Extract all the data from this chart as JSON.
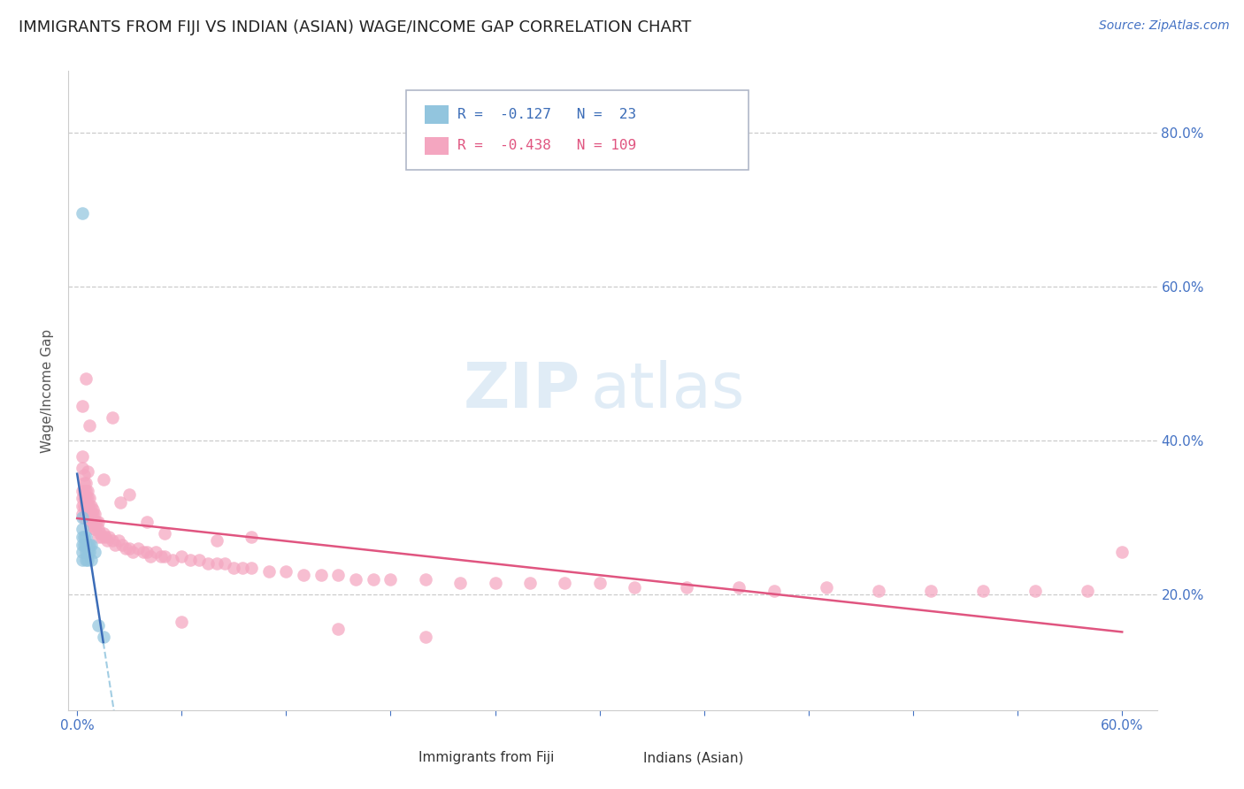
{
  "title": "IMMIGRANTS FROM FIJI VS INDIAN (ASIAN) WAGE/INCOME GAP CORRELATION CHART",
  "source": "Source: ZipAtlas.com",
  "xlabel_fiji": "Immigrants from Fiji",
  "xlabel_indian": "Indians (Asian)",
  "ylabel_label": "Wage/Income Gap",
  "x_ticks": [
    0.0,
    0.06,
    0.12,
    0.18,
    0.24,
    0.3,
    0.36,
    0.42,
    0.48,
    0.54,
    0.6
  ],
  "x_tick_labels_show": [
    "0.0%",
    "",
    "",
    "",
    "",
    "",
    "",
    "",
    "",
    "",
    "60.0%"
  ],
  "y_ticks_right": [
    0.2,
    0.4,
    0.6,
    0.8
  ],
  "y_tick_labels_right": [
    "20.0%",
    "40.0%",
    "60.0%",
    "80.0%"
  ],
  "xlim": [
    -0.005,
    0.62
  ],
  "ylim": [
    0.05,
    0.88
  ],
  "legend_r1_val": "-0.127",
  "legend_r1_n": "23",
  "legend_r2_val": "-0.438",
  "legend_r2_n": "109",
  "fiji_color": "#92c5de",
  "indian_color": "#f4a6c0",
  "fiji_line_color": "#3b6cb7",
  "indian_line_color": "#e05580",
  "background_color": "#ffffff",
  "grid_color": "#cccccc",
  "title_color": "#222222",
  "tick_label_color": "#4472c4",
  "source_color": "#4472c4",
  "watermark_zip": "ZIP",
  "watermark_atlas": "atlas",
  "fiji_x": [
    0.003,
    0.003,
    0.003,
    0.003,
    0.003,
    0.003,
    0.004,
    0.004,
    0.005,
    0.005,
    0.005,
    0.005,
    0.006,
    0.006,
    0.006,
    0.007,
    0.007,
    0.008,
    0.008,
    0.01,
    0.012,
    0.015,
    0.003
  ],
  "fiji_y": [
    0.695,
    0.285,
    0.275,
    0.265,
    0.255,
    0.245,
    0.275,
    0.265,
    0.275,
    0.265,
    0.255,
    0.245,
    0.265,
    0.255,
    0.245,
    0.265,
    0.255,
    0.265,
    0.245,
    0.255,
    0.16,
    0.145,
    0.3
  ],
  "indian_x": [
    0.003,
    0.003,
    0.003,
    0.003,
    0.003,
    0.003,
    0.004,
    0.004,
    0.004,
    0.004,
    0.004,
    0.005,
    0.005,
    0.005,
    0.005,
    0.005,
    0.006,
    0.006,
    0.006,
    0.006,
    0.007,
    0.007,
    0.007,
    0.008,
    0.008,
    0.008,
    0.009,
    0.009,
    0.01,
    0.01,
    0.01,
    0.011,
    0.012,
    0.012,
    0.013,
    0.014,
    0.015,
    0.016,
    0.017,
    0.018,
    0.02,
    0.022,
    0.024,
    0.026,
    0.028,
    0.03,
    0.032,
    0.035,
    0.038,
    0.04,
    0.042,
    0.045,
    0.048,
    0.05,
    0.055,
    0.06,
    0.065,
    0.07,
    0.075,
    0.08,
    0.085,
    0.09,
    0.095,
    0.1,
    0.11,
    0.12,
    0.13,
    0.14,
    0.15,
    0.16,
    0.17,
    0.18,
    0.2,
    0.22,
    0.24,
    0.26,
    0.28,
    0.3,
    0.32,
    0.35,
    0.38,
    0.4,
    0.43,
    0.46,
    0.49,
    0.52,
    0.55,
    0.58,
    0.003,
    0.004,
    0.005,
    0.006,
    0.007,
    0.008,
    0.009,
    0.01,
    0.012,
    0.015,
    0.02,
    0.025,
    0.03,
    0.04,
    0.05,
    0.06,
    0.08,
    0.1,
    0.15,
    0.2,
    0.6
  ],
  "indian_y": [
    0.365,
    0.335,
    0.325,
    0.315,
    0.305,
    0.445,
    0.355,
    0.345,
    0.335,
    0.325,
    0.315,
    0.345,
    0.335,
    0.325,
    0.315,
    0.305,
    0.335,
    0.325,
    0.315,
    0.305,
    0.325,
    0.315,
    0.305,
    0.315,
    0.305,
    0.295,
    0.305,
    0.295,
    0.305,
    0.295,
    0.285,
    0.295,
    0.285,
    0.275,
    0.28,
    0.275,
    0.28,
    0.275,
    0.27,
    0.275,
    0.27,
    0.265,
    0.27,
    0.265,
    0.26,
    0.26,
    0.255,
    0.26,
    0.255,
    0.255,
    0.25,
    0.255,
    0.25,
    0.25,
    0.245,
    0.25,
    0.245,
    0.245,
    0.24,
    0.24,
    0.24,
    0.235,
    0.235,
    0.235,
    0.23,
    0.23,
    0.225,
    0.225,
    0.225,
    0.22,
    0.22,
    0.22,
    0.22,
    0.215,
    0.215,
    0.215,
    0.215,
    0.215,
    0.21,
    0.21,
    0.21,
    0.205,
    0.21,
    0.205,
    0.205,
    0.205,
    0.205,
    0.205,
    0.38,
    0.3,
    0.48,
    0.36,
    0.42,
    0.29,
    0.31,
    0.285,
    0.295,
    0.35,
    0.43,
    0.32,
    0.33,
    0.295,
    0.28,
    0.165,
    0.27,
    0.275,
    0.155,
    0.145,
    0.255
  ]
}
